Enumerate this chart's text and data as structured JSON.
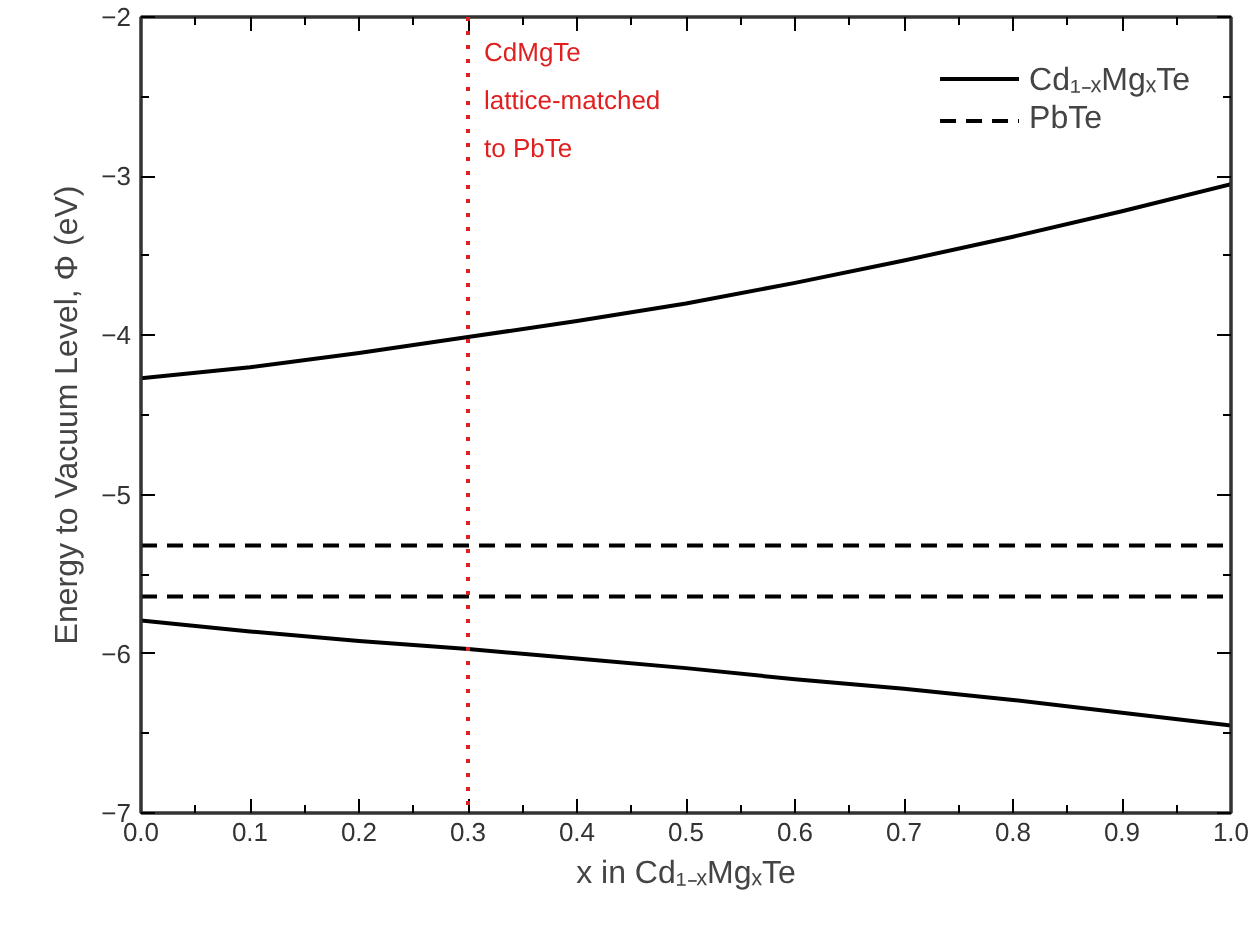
{
  "chart_data": {
    "type": "line",
    "xlabel": "x in Cd₁₋ₓMgₓTe",
    "ylabel": "Energy to Vacuum Level, Φ (eV)",
    "xlim": [
      0,
      1
    ],
    "ylim": [
      -7,
      -2
    ],
    "xticks": [
      {
        "value": 0,
        "label": "0.0"
      },
      0.1,
      0.2,
      0.3,
      0.4,
      0.5,
      0.6,
      0.7,
      0.8,
      0.9,
      {
        "value": 1,
        "label": "1.0"
      }
    ],
    "yticks": [
      -7,
      -6,
      -5,
      -4,
      -3,
      -2
    ],
    "grid": false,
    "legend": "top right",
    "marker": "none",
    "series": [
      {
        "name": "Cd₁₋ₓMgₓTe",
        "color": "#000000",
        "line_style": "solid",
        "x": [
          0,
          0.1,
          0.2,
          0.3,
          0.4,
          0.5,
          0.6,
          0.7,
          0.8,
          0.9,
          1.0
        ],
        "values": [
          -4.27,
          -4.2,
          -4.11,
          -4.01,
          -3.91,
          -3.8,
          -3.67,
          -3.53,
          -3.38,
          -3.22,
          -3.05
        ]
      },
      {
        "color": "#000000",
        "line_style": "solid",
        "x": [
          0,
          0.1,
          0.2,
          0.3,
          0.4,
          0.5,
          0.6,
          0.7,
          0.8,
          0.9,
          1.0
        ],
        "values": [
          -5.79,
          -5.86,
          -5.92,
          -5.97,
          -6.03,
          -6.09,
          -6.16,
          -6.22,
          -6.29,
          -6.37,
          -6.45
        ]
      },
      {
        "name": "PbTe",
        "color": "#000000",
        "line_style": "dashed",
        "x": [
          0,
          1
        ],
        "values": [
          -5.32,
          -5.32
        ]
      },
      {
        "color": "#000000",
        "line_style": "dashed",
        "x": [
          0,
          1
        ],
        "values": [
          -5.64,
          -5.64
        ]
      }
    ],
    "ref_lines": [
      {
        "axis": "x",
        "value": 0.3,
        "label": "CdMgTe\nlattice-matched\nto PbTe",
        "color": "#e02020",
        "line_style": "dotted"
      }
    ]
  }
}
